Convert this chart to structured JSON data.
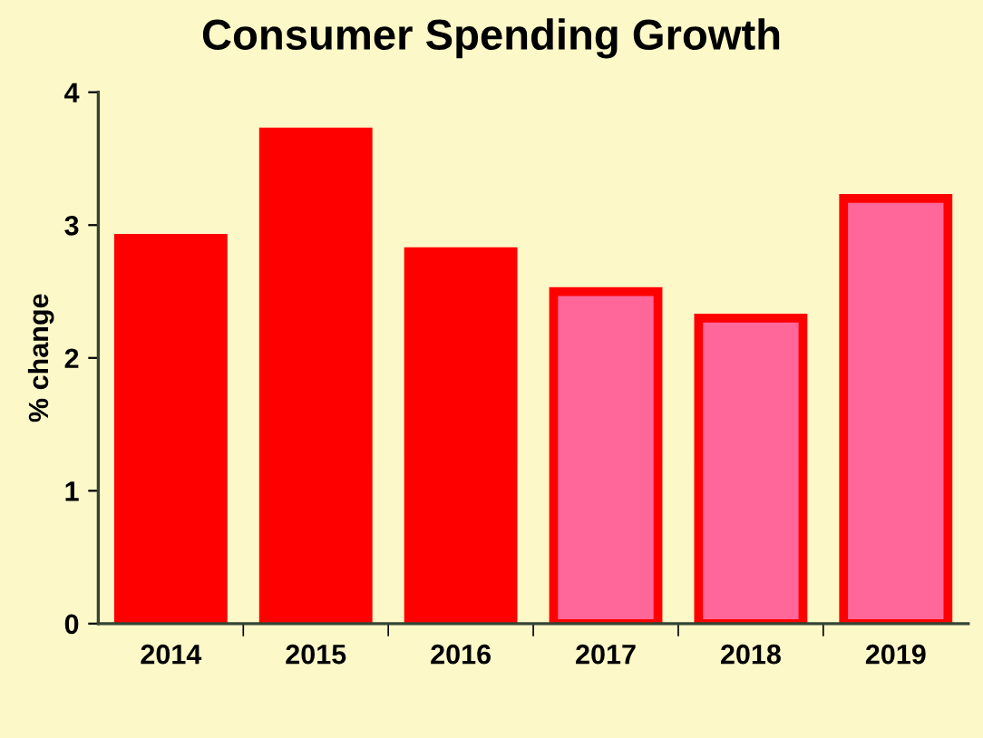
{
  "chart_data": {
    "type": "bar",
    "title": "Consumer Spending Growth",
    "ylabel": "% change",
    "categories": [
      "2014",
      "2015",
      "2016",
      "2017",
      "2018",
      "2019"
    ],
    "series": [
      {
        "color": "#ff0000",
        "values": [
          2.9,
          3.7,
          2.8,
          null,
          null,
          null
        ]
      },
      {
        "color": "#ff6699",
        "values": [
          null,
          null,
          null,
          2.5,
          2.3,
          3.2
        ]
      }
    ],
    "ylim": [
      0,
      4
    ],
    "yticks": [
      0,
      1,
      2,
      3,
      4
    ],
    "grid": false,
    "legend": false
  }
}
